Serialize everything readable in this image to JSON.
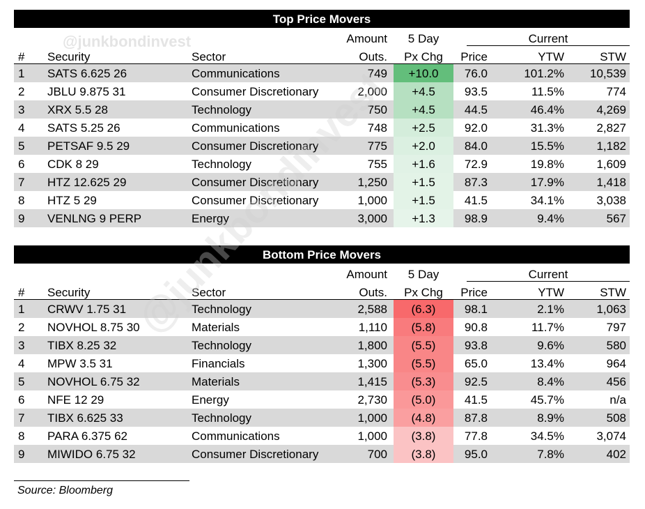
{
  "watermark": "@junkbondinvest",
  "headers": {
    "num": "#",
    "security": "Security",
    "sector": "Sector",
    "amount_top": "Amount",
    "amount_bottom": "Outs.",
    "chg_top": "5 Day",
    "chg_bottom": "Px Chg",
    "current": "Current",
    "price": "Price",
    "ytw": "YTW",
    "stw": "STW"
  },
  "top": {
    "title": "Top Price Movers",
    "rows": [
      {
        "num": "1",
        "security": "SATS 6.625 26",
        "sector": "Communications",
        "amount": "749",
        "chg": "+10.0",
        "chg_value": 10.0,
        "price": "76.0",
        "ytw": "101.2%",
        "stw": "10,539"
      },
      {
        "num": "2",
        "security": "JBLU 9.875 31",
        "sector": "Consumer Discretionary",
        "amount": "2,000",
        "chg": "+4.5",
        "chg_value": 4.5,
        "price": "93.5",
        "ytw": "11.5%",
        "stw": "774"
      },
      {
        "num": "3",
        "security": "XRX 5.5 28",
        "sector": "Technology",
        "amount": "750",
        "chg": "+4.5",
        "chg_value": 4.5,
        "price": "44.5",
        "ytw": "46.4%",
        "stw": "4,269"
      },
      {
        "num": "4",
        "security": "SATS 5.25 26",
        "sector": "Communications",
        "amount": "748",
        "chg": "+2.5",
        "chg_value": 2.5,
        "price": "92.0",
        "ytw": "31.3%",
        "stw": "2,827"
      },
      {
        "num": "5",
        "security": "PETSAF 9.5 29",
        "sector": "Consumer Discretionary",
        "amount": "775",
        "chg": "+2.0",
        "chg_value": 2.0,
        "price": "84.0",
        "ytw": "15.5%",
        "stw": "1,182"
      },
      {
        "num": "6",
        "security": "CDK 8 29",
        "sector": "Technology",
        "amount": "755",
        "chg": "+1.6",
        "chg_value": 1.6,
        "price": "72.9",
        "ytw": "19.8%",
        "stw": "1,609"
      },
      {
        "num": "7",
        "security": "HTZ 12.625 29",
        "sector": "Consumer Discretionary",
        "amount": "1,250",
        "chg": "+1.5",
        "chg_value": 1.5,
        "price": "87.3",
        "ytw": "17.9%",
        "stw": "1,418"
      },
      {
        "num": "8",
        "security": "HTZ 5 29",
        "sector": "Consumer Discretionary",
        "amount": "1,000",
        "chg": "+1.5",
        "chg_value": 1.5,
        "price": "41.5",
        "ytw": "34.1%",
        "stw": "3,038"
      },
      {
        "num": "9",
        "security": "VENLNG 9 PERP",
        "sector": "Energy",
        "amount": "3,000",
        "chg": "+1.3",
        "chg_value": 1.3,
        "price": "98.9",
        "ytw": "9.4%",
        "stw": "567"
      }
    ]
  },
  "bottom": {
    "title": "Bottom Price Movers",
    "rows": [
      {
        "num": "1",
        "security": "CRWV 1.75 31",
        "sector": "Technology",
        "amount": "2,588",
        "chg": "(6.3)",
        "chg_value": -6.3,
        "price": "98.1",
        "ytw": "2.1%",
        "stw": "1,063"
      },
      {
        "num": "2",
        "security": "NOVHOL 8.75 30",
        "sector": "Materials",
        "amount": "1,110",
        "chg": "(5.8)",
        "chg_value": -5.8,
        "price": "90.8",
        "ytw": "11.7%",
        "stw": "797"
      },
      {
        "num": "3",
        "security": "TIBX 8.25 32",
        "sector": "Technology",
        "amount": "1,800",
        "chg": "(5.5)",
        "chg_value": -5.5,
        "price": "93.8",
        "ytw": "9.6%",
        "stw": "580"
      },
      {
        "num": "4",
        "security": "MPW 3.5 31",
        "sector": "Financials",
        "amount": "1,300",
        "chg": "(5.5)",
        "chg_value": -5.5,
        "price": "65.0",
        "ytw": "13.4%",
        "stw": "964"
      },
      {
        "num": "5",
        "security": "NOVHOL 6.75 32",
        "sector": "Materials",
        "amount": "1,415",
        "chg": "(5.3)",
        "chg_value": -5.3,
        "price": "92.5",
        "ytw": "8.4%",
        "stw": "456"
      },
      {
        "num": "6",
        "security": "NFE 12 29",
        "sector": "Energy",
        "amount": "2,730",
        "chg": "(5.0)",
        "chg_value": -5.0,
        "price": "41.5",
        "ytw": "45.7%",
        "stw": "n/a"
      },
      {
        "num": "7",
        "security": "TIBX 6.625 33",
        "sector": "Technology",
        "amount": "1,000",
        "chg": "(4.8)",
        "chg_value": -4.8,
        "price": "87.8",
        "ytw": "8.9%",
        "stw": "508"
      },
      {
        "num": "8",
        "security": "PARA 6.375 62",
        "sector": "Communications",
        "amount": "1,000",
        "chg": "(3.8)",
        "chg_value": -3.8,
        "price": "77.8",
        "ytw": "34.5%",
        "stw": "3,074"
      },
      {
        "num": "9",
        "security": "MIWIDO 6.75 32",
        "sector": "Consumer Discretionary",
        "amount": "700",
        "chg": "(3.8)",
        "chg_value": -3.8,
        "price": "95.0",
        "ytw": "7.8%",
        "stw": "402"
      }
    ]
  },
  "colors": {
    "positive_max": "#63be7b",
    "positive_min": "#e6f4ea",
    "negative_max": "#f8696b",
    "negative_min": "#fbc3c4"
  },
  "source": "Source: Bloomberg"
}
